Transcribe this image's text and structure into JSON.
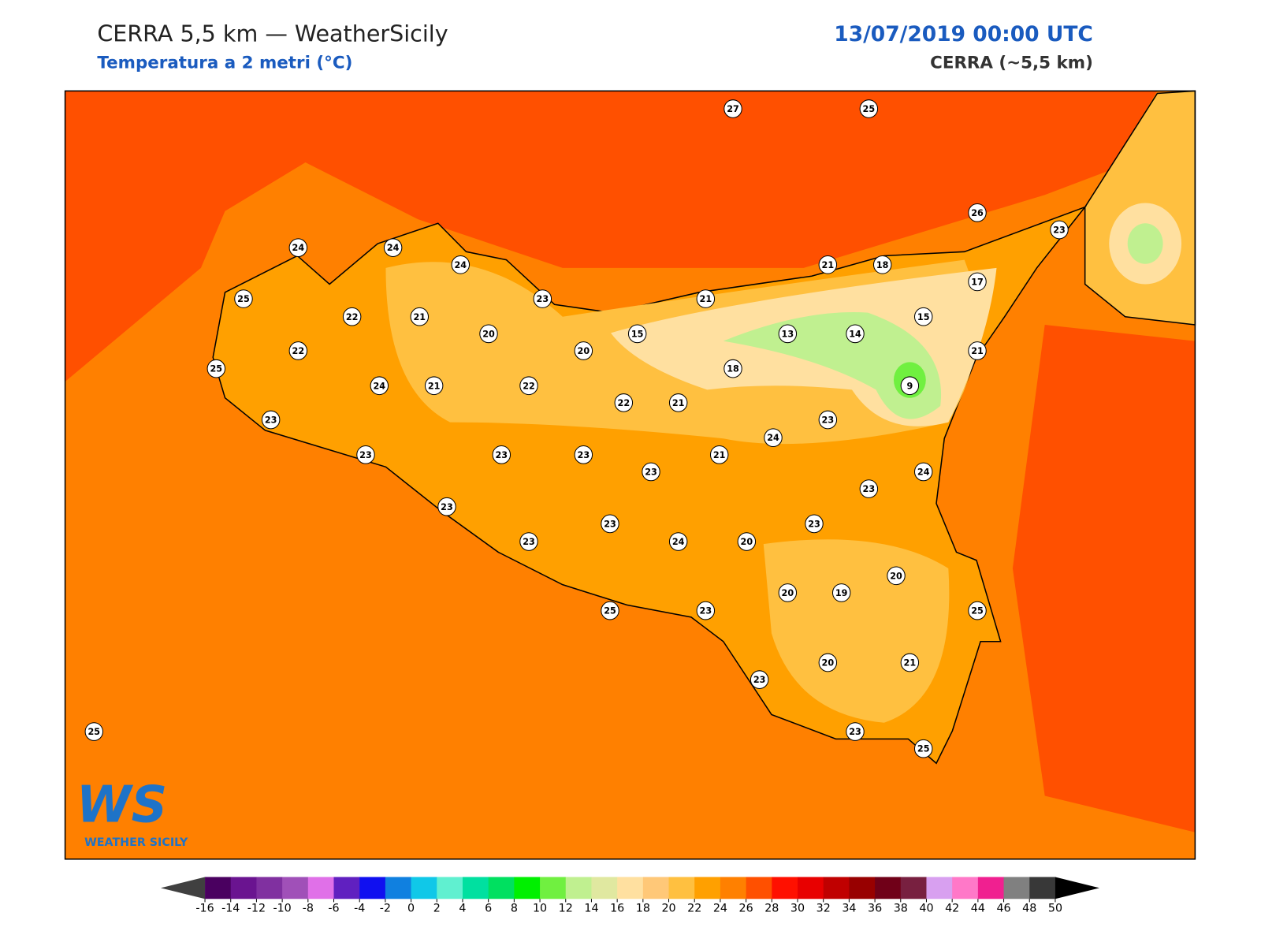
{
  "header": {
    "title": "CERRA 5,5 km — WeatherSicily",
    "subtitle": "Temperatura a 2 metri (°C)",
    "datetime": "13/07/2019 00:00 UTC",
    "model": "CERRA (~5,5 km)"
  },
  "stations": [
    27,
    25,
    26,
    23,
    24,
    24,
    24,
    21,
    18,
    25,
    23,
    21,
    17,
    22,
    21,
    15,
    20,
    15,
    13,
    14,
    22,
    20,
    21,
    25,
    18,
    24,
    21,
    22,
    9,
    22,
    21,
    23,
    23,
    24,
    23,
    23,
    23,
    21,
    23,
    24,
    23,
    23,
    23,
    23,
    23,
    24,
    20,
    20,
    20,
    19,
    25,
    23,
    25,
    23,
    20,
    21,
    25,
    23,
    25
  ],
  "logo": {
    "mark": "WS",
    "name": "WEATHER SICILY"
  },
  "colorbar": {
    "ticks": [
      -16,
      -14,
      -12,
      -10,
      -8,
      -6,
      -4,
      -2,
      0,
      2,
      4,
      6,
      8,
      10,
      12,
      14,
      16,
      18,
      20,
      22,
      24,
      26,
      28,
      30,
      32,
      34,
      36,
      38,
      40,
      42,
      44,
      46,
      48,
      50
    ],
    "colors": [
      "#4a0060",
      "#6a1490",
      "#8030a0",
      "#a050b8",
      "#e070e8",
      "#6020c0",
      "#1010f0",
      "#1080e0",
      "#10c8e8",
      "#60f0d0",
      "#00e0a0",
      "#00e060",
      "#00f000",
      "#70f040",
      "#c0f090",
      "#e0e8a0",
      "#ffe0a0",
      "#ffc878",
      "#ffc040",
      "#ffa000",
      "#ff8000",
      "#ff5000",
      "#ff1000",
      "#e80000",
      "#c00000",
      "#980000",
      "#700018",
      "#782040",
      "#d8a0f0",
      "#ff78c8",
      "#f02090",
      "#808080",
      "#383838"
    ],
    "under_color": "#404040",
    "over_color": "#000000"
  }
}
